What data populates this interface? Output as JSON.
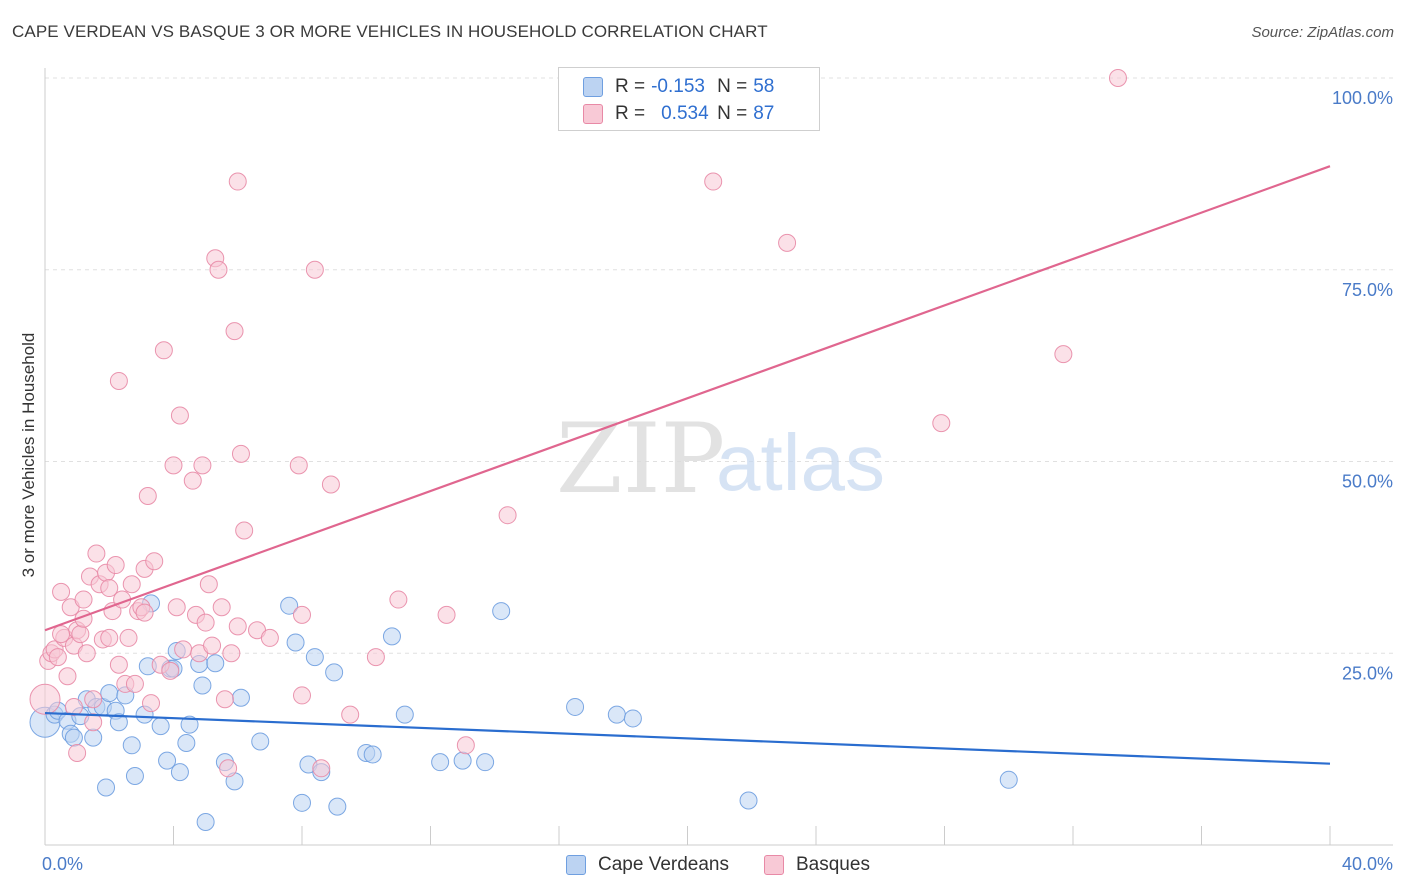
{
  "title": "CAPE VERDEAN VS BASQUE 3 OR MORE VEHICLES IN HOUSEHOLD CORRELATION CHART",
  "source": "Source: ZipAtlas.com",
  "watermark": {
    "zip": "ZIP",
    "atlas": "atlas"
  },
  "legend": {
    "rows": [
      {
        "r_label": "R =",
        "r_value": "-0.153",
        "n_label": "N =",
        "n_value": "58",
        "fill": "#bcd3f2",
        "stroke": "#6f9fe0"
      },
      {
        "r_label": "R =",
        "r_value": "0.534",
        "n_label": "N =",
        "n_value": "87",
        "fill": "#f8c9d6",
        "stroke": "#e889a6"
      }
    ]
  },
  "bottom_legend": {
    "cape": {
      "label": "Cape Verdeans"
    },
    "basque": {
      "label": "Basques"
    }
  },
  "chart_data": {
    "type": "scatter",
    "title": "CAPE VERDEAN VS BASQUE 3 OR MORE VEHICLES IN HOUSEHOLD CORRELATION CHART",
    "xlabel": "",
    "ylabel": "3 or more Vehicles in Household",
    "xlim": [
      0,
      40
    ],
    "ylim": [
      0,
      100
    ],
    "x_ticks": [
      {
        "value": 0,
        "label": "0.0%"
      },
      {
        "value": 40,
        "label": "40.0%"
      }
    ],
    "y_ticks": [
      {
        "value": 25,
        "label": "25.0%"
      },
      {
        "value": 50,
        "label": "50.0%"
      },
      {
        "value": 75,
        "label": "75.0%"
      },
      {
        "value": 100,
        "label": "100.0%"
      }
    ],
    "grid": true,
    "series": [
      {
        "name": "Cape Verdeans",
        "color": "#6f9fe0",
        "fill": "#bcd3f2",
        "line_color": "#2a6dcf",
        "trend": {
          "x": [
            0,
            40
          ],
          "y": [
            17.2,
            10.6
          ]
        },
        "points": [
          [
            0.0,
            16.0
          ],
          [
            0.3,
            17.0
          ],
          [
            0.4,
            17.5
          ],
          [
            0.7,
            16.2
          ],
          [
            0.8,
            14.5
          ],
          [
            0.9,
            14.0
          ],
          [
            1.1,
            16.8
          ],
          [
            1.3,
            19.0
          ],
          [
            1.5,
            14.0
          ],
          [
            1.6,
            18.0
          ],
          [
            1.8,
            18.0
          ],
          [
            1.9,
            7.5
          ],
          [
            2.0,
            19.8
          ],
          [
            2.2,
            17.5
          ],
          [
            2.3,
            16.0
          ],
          [
            2.5,
            19.5
          ],
          [
            2.7,
            13.0
          ],
          [
            2.8,
            9.0
          ],
          [
            3.1,
            17.0
          ],
          [
            3.2,
            23.3
          ],
          [
            3.3,
            31.5
          ],
          [
            3.6,
            15.5
          ],
          [
            3.8,
            11.0
          ],
          [
            3.9,
            23.0
          ],
          [
            4.0,
            23.0
          ],
          [
            4.1,
            25.3
          ],
          [
            4.2,
            9.5
          ],
          [
            4.4,
            13.3
          ],
          [
            4.5,
            15.7
          ],
          [
            4.8,
            23.6
          ],
          [
            4.9,
            20.8
          ],
          [
            5.0,
            3.0
          ],
          [
            5.3,
            23.7
          ],
          [
            5.6,
            10.8
          ],
          [
            5.9,
            8.3
          ],
          [
            6.1,
            19.2
          ],
          [
            6.7,
            13.5
          ],
          [
            7.6,
            31.2
          ],
          [
            7.8,
            26.4
          ],
          [
            8.0,
            5.5
          ],
          [
            8.2,
            10.5
          ],
          [
            8.4,
            24.5
          ],
          [
            8.6,
            9.5
          ],
          [
            9.0,
            22.5
          ],
          [
            9.1,
            5.0
          ],
          [
            10.0,
            12.0
          ],
          [
            10.2,
            11.8
          ],
          [
            10.8,
            27.2
          ],
          [
            11.2,
            17.0
          ],
          [
            12.3,
            10.8
          ],
          [
            13.0,
            11.0
          ],
          [
            13.7,
            10.8
          ],
          [
            14.2,
            30.5
          ],
          [
            16.5,
            18.0
          ],
          [
            17.8,
            17.0
          ],
          [
            18.3,
            16.5
          ],
          [
            21.9,
            5.8
          ],
          [
            30.0,
            8.5
          ]
        ]
      },
      {
        "name": "Basques",
        "color": "#e889a6",
        "fill": "#f8c9d6",
        "line_color": "#e0668f",
        "trend": {
          "x": [
            0,
            40
          ],
          "y": [
            28.0,
            88.5
          ]
        },
        "points": [
          [
            0.0,
            19.0
          ],
          [
            0.1,
            24.0
          ],
          [
            0.2,
            25.0
          ],
          [
            0.3,
            25.5
          ],
          [
            0.4,
            24.5
          ],
          [
            0.5,
            33.0
          ],
          [
            0.6,
            27.0
          ],
          [
            0.7,
            22.0
          ],
          [
            0.8,
            31.0
          ],
          [
            0.9,
            26.0
          ],
          [
            1.0,
            28.0
          ],
          [
            1.1,
            27.5
          ],
          [
            1.2,
            32.0
          ],
          [
            1.3,
            25.0
          ],
          [
            1.4,
            35.0
          ],
          [
            1.5,
            19.0
          ],
          [
            1.6,
            38.0
          ],
          [
            1.7,
            34.0
          ],
          [
            1.8,
            26.8
          ],
          [
            1.9,
            35.5
          ],
          [
            2.0,
            27.0
          ],
          [
            2.1,
            30.5
          ],
          [
            2.2,
            36.5
          ],
          [
            2.3,
            23.5
          ],
          [
            2.4,
            32.0
          ],
          [
            2.5,
            21.0
          ],
          [
            2.6,
            27.0
          ],
          [
            2.7,
            34.0
          ],
          [
            2.8,
            21.0
          ],
          [
            2.9,
            30.5
          ],
          [
            3.0,
            31.0
          ],
          [
            3.1,
            36.0
          ],
          [
            3.2,
            45.5
          ],
          [
            3.3,
            18.5
          ],
          [
            3.4,
            37.0
          ],
          [
            3.6,
            23.5
          ],
          [
            3.7,
            64.5
          ],
          [
            4.0,
            49.5
          ],
          [
            4.1,
            31.0
          ],
          [
            4.2,
            56.0
          ],
          [
            4.3,
            25.5
          ],
          [
            4.6,
            47.5
          ],
          [
            4.7,
            30.0
          ],
          [
            4.8,
            25.0
          ],
          [
            4.9,
            49.5
          ],
          [
            5.0,
            29.0
          ],
          [
            5.1,
            34.0
          ],
          [
            5.2,
            26.0
          ],
          [
            5.3,
            76.5
          ],
          [
            5.4,
            75.0
          ],
          [
            5.5,
            31.0
          ],
          [
            5.6,
            19.0
          ],
          [
            5.7,
            10.0
          ],
          [
            5.8,
            25.0
          ],
          [
            5.9,
            67.0
          ],
          [
            6.0,
            28.5
          ],
          [
            6.1,
            51.0
          ],
          [
            6.2,
            41.0
          ],
          [
            6.0,
            86.5
          ],
          [
            6.6,
            28.0
          ],
          [
            2.3,
            60.5
          ],
          [
            3.9,
            22.7
          ],
          [
            7.0,
            27.0
          ],
          [
            8.0,
            30.0
          ],
          [
            8.4,
            75.0
          ],
          [
            8.6,
            10.0
          ],
          [
            7.9,
            49.5
          ],
          [
            8.9,
            47.0
          ],
          [
            9.5,
            17.0
          ],
          [
            8.0,
            19.5
          ],
          [
            10.3,
            24.5
          ],
          [
            11.0,
            32.0
          ],
          [
            12.5,
            30.0
          ],
          [
            13.1,
            13.0
          ],
          [
            14.4,
            43.0
          ],
          [
            20.8,
            86.5
          ],
          [
            23.1,
            78.5
          ],
          [
            27.9,
            55.0
          ],
          [
            31.7,
            64.0
          ],
          [
            33.4,
            100.0
          ],
          [
            1.0,
            12.0
          ],
          [
            1.5,
            16.0
          ],
          [
            0.9,
            18.0
          ],
          [
            1.2,
            29.5
          ],
          [
            2.0,
            33.5
          ],
          [
            0.5,
            27.5
          ],
          [
            3.1,
            30.3
          ]
        ]
      }
    ]
  }
}
